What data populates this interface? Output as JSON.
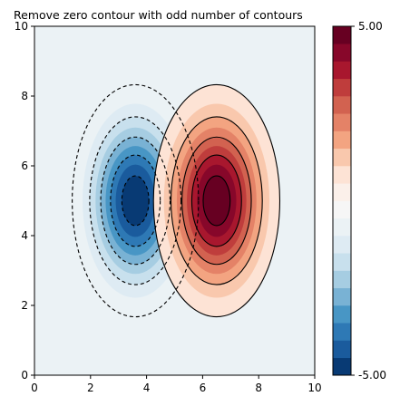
{
  "chart_data": {
    "type": "contour",
    "title": "Remove zero contour with odd number of contours",
    "xlabel": "",
    "ylabel": "",
    "xlim": [
      0,
      10
    ],
    "ylim": [
      0,
      10
    ],
    "x_ticks": [
      "0",
      "2",
      "4",
      "6",
      "8",
      "10"
    ],
    "y_ticks": [
      "0",
      "2",
      "4",
      "6",
      "8",
      "10"
    ],
    "colormap": "RdBu_r",
    "colorbar": {
      "min": -5.0,
      "max": 5.0,
      "tick_labels": [
        "-5.00",
        "5.00"
      ],
      "levels": 20,
      "colors": [
        "#083a74",
        "#1a5b9d",
        "#2e79b5",
        "#4896c5",
        "#79b2d4",
        "#a6cde2",
        "#c8e0ed",
        "#deebf3",
        "#ebf2f5",
        "#f6f6f6",
        "#fbf0ea",
        "#fde3d5",
        "#f9c8ad",
        "#f3a481",
        "#e48267",
        "#d26250",
        "#bf3d3c",
        "#a8172e",
        "#87072a",
        "#670022"
      ]
    },
    "blobs": [
      {
        "name": "negative",
        "center": [
          3.6,
          5.0
        ],
        "peak": -5.0
      },
      {
        "name": "positive",
        "center": [
          6.5,
          5.0
        ],
        "peak": 5.0
      }
    ],
    "contour_levels": [
      -4.5,
      -3.5,
      -2.5,
      -1.5,
      -0.5,
      0.5,
      1.5,
      2.5,
      3.5,
      4.5
    ],
    "background_color": "#ebf2f5",
    "negative_linestyle": "dashed",
    "positive_linestyle": "solid"
  }
}
